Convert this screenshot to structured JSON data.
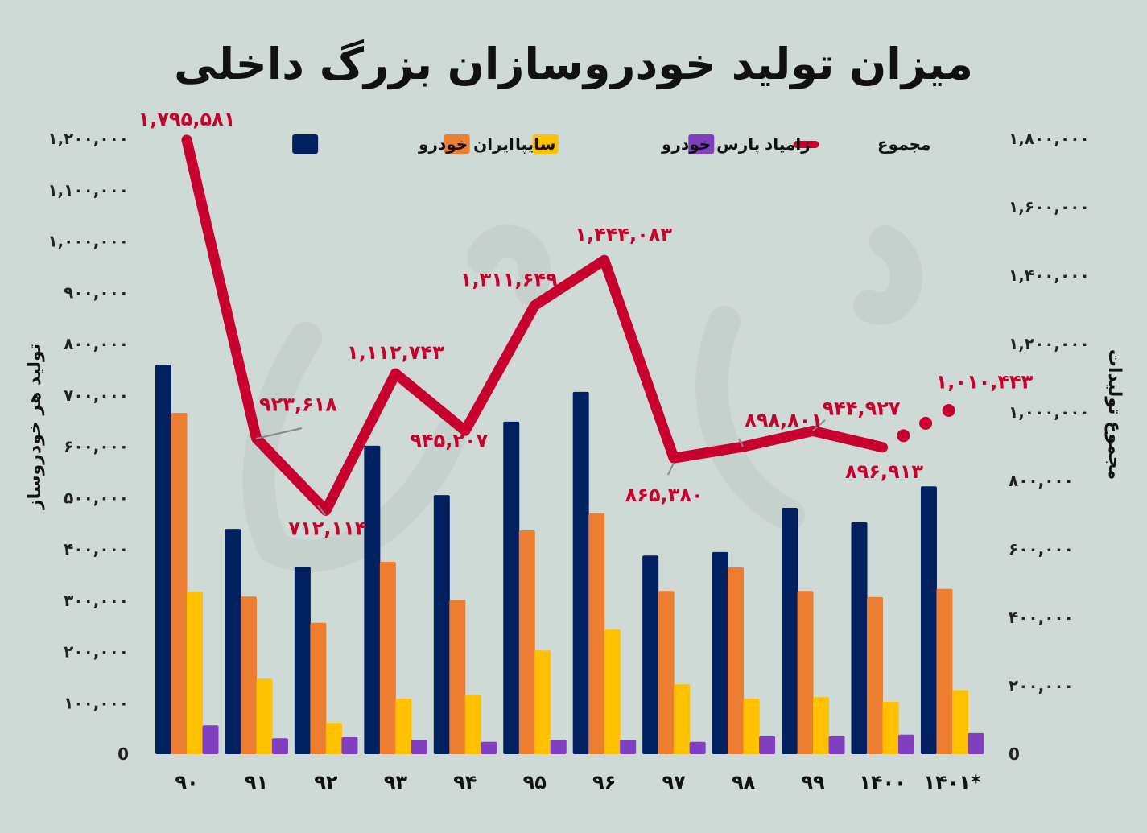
{
  "title": "میزان تولید خودروسازان بزرگ داخلی",
  "chart_data": {
    "type": "bar+line",
    "title": "میزان تولید خودروسازان بزرگ داخلی",
    "categories": [
      "۹۰",
      "۹۱",
      "۹۲",
      "۹۳",
      "۹۴",
      "۹۵",
      "۹۶",
      "۹۷",
      "۹۸",
      "۹۹",
      "۱۴۰۰",
      "۱۴۰۱*"
    ],
    "ylabel": "تولید هر خودروساز",
    "y2label": "مجموع تولیدات",
    "ylim": [
      0,
      1200000
    ],
    "y2lim": [
      0,
      1800000
    ],
    "yticks": [
      {
        "value": 0,
        "label": "0"
      },
      {
        "value": 100000,
        "label": "۱۰۰,۰۰۰"
      },
      {
        "value": 200000,
        "label": "۲۰۰,۰۰۰"
      },
      {
        "value": 300000,
        "label": "۳۰۰,۰۰۰"
      },
      {
        "value": 400000,
        "label": "۴۰۰,۰۰۰"
      },
      {
        "value": 500000,
        "label": "۵۰۰,۰۰۰"
      },
      {
        "value": 600000,
        "label": "۶۰۰,۰۰۰"
      },
      {
        "value": 700000,
        "label": "۷۰۰,۰۰۰"
      },
      {
        "value": 800000,
        "label": "۸۰۰,۰۰۰"
      },
      {
        "value": 900000,
        "label": "۹۰۰,۰۰۰"
      },
      {
        "value": 1000000,
        "label": "۱,۰۰۰,۰۰۰"
      },
      {
        "value": 1100000,
        "label": "۱,۱۰۰,۰۰۰"
      },
      {
        "value": 1200000,
        "label": "۱,۲۰۰,۰۰۰"
      }
    ],
    "y2ticks": [
      {
        "value": 0,
        "label": "0"
      },
      {
        "value": 200000,
        "label": "۲۰۰,۰۰۰"
      },
      {
        "value": 400000,
        "label": "۴۰۰,۰۰۰"
      },
      {
        "value": 600000,
        "label": "۶۰۰,۰۰۰"
      },
      {
        "value": 800000,
        "label": "۸۰۰,۰۰۰"
      },
      {
        "value": 1000000,
        "label": "۱,۰۰۰,۰۰۰"
      },
      {
        "value": 1200000,
        "label": "۱,۲۰۰,۰۰۰"
      },
      {
        "value": 1400000,
        "label": "۱,۴۰۰,۰۰۰"
      },
      {
        "value": 1600000,
        "label": "۱,۶۰۰,۰۰۰"
      },
      {
        "value": 1800000,
        "label": "۱,۸۰۰,۰۰۰"
      }
    ],
    "legend_position": "top",
    "series": [
      {
        "name": "ایران خودرو",
        "color": "#002060",
        "values": [
          759000,
          439000,
          365000,
          601000,
          505000,
          648000,
          706000,
          387000,
          394000,
          480000,
          452000,
          522000
        ]
      },
      {
        "name": "سایپا",
        "color": "#ED7D31",
        "values": [
          665000,
          307000,
          256000,
          375000,
          301000,
          436000,
          469000,
          318000,
          364000,
          318000,
          306000,
          322000
        ]
      },
      {
        "name": "پارس خودرو",
        "color": "#FFC000",
        "values": [
          317000,
          147000,
          61000,
          108000,
          116000,
          202000,
          243000,
          136000,
          108000,
          111000,
          102000,
          125000
        ]
      },
      {
        "name": "زامیاد",
        "color": "#7F3FBF",
        "values": [
          56000,
          31000,
          33000,
          28000,
          24000,
          28000,
          28000,
          24000,
          35000,
          35000,
          38000,
          41000
        ]
      }
    ],
    "total": {
      "name": "مجموع",
      "color": "#C8002E",
      "axis": "right",
      "values": [
        1795581,
        923618,
        712114,
        1112743,
        945207,
        1311649,
        1444083,
        865380,
        898801,
        944927,
        896913,
        1010443
      ],
      "labels": [
        "۱,۷۹۵,۵۸۱",
        "۹۲۳,۶۱۸",
        "۷۱۲,۱۱۴",
        "۱,۱۱۲,۷۴۳",
        "۹۴۵,۲۰۷",
        "۱,۳۱۱,۶۴۹",
        "۱,۴۴۴,۰۸۳",
        "۸۶۵,۳۸۰",
        "۸۹۸,۸۰۱",
        "۹۴۴,۹۲۷",
        "۸۹۶,۹۱۳",
        "۱,۰۱۰,۴۴۳"
      ],
      "last_segment_style": "dotted"
    }
  }
}
